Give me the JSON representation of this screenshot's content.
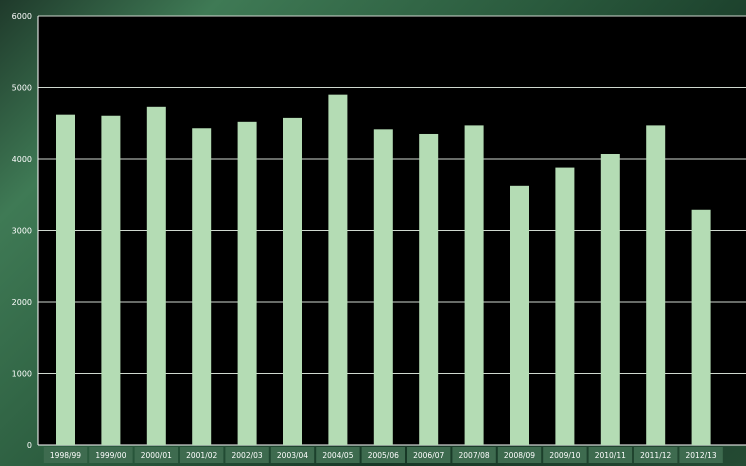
{
  "chart_data": {
    "type": "bar",
    "categories": [
      "1998/99",
      "1999/00",
      "2000/01",
      "2001/02",
      "2002/03",
      "2003/04",
      "2004/05",
      "2005/06",
      "2006/07",
      "2007/08",
      "2008/09",
      "2009/10",
      "2010/11",
      "2011/12",
      "2012/13"
    ],
    "values": [
      4620,
      4605,
      4730,
      4430,
      4520,
      4575,
      4900,
      4415,
      4350,
      4470,
      3625,
      3880,
      4070,
      4470,
      3290
    ],
    "ylim": [
      0,
      6000
    ],
    "yticks": [
      0,
      1000,
      2000,
      3000,
      4000,
      5000,
      6000
    ],
    "grid": true,
    "title": "",
    "xlabel": "",
    "ylabel": "",
    "colors": {
      "bar": "#b4dcb4",
      "plot_background": "#000000",
      "gridline": "#cfd8cf",
      "tick_label_bg": "#3e6b4f",
      "text": "#ffffff"
    }
  }
}
